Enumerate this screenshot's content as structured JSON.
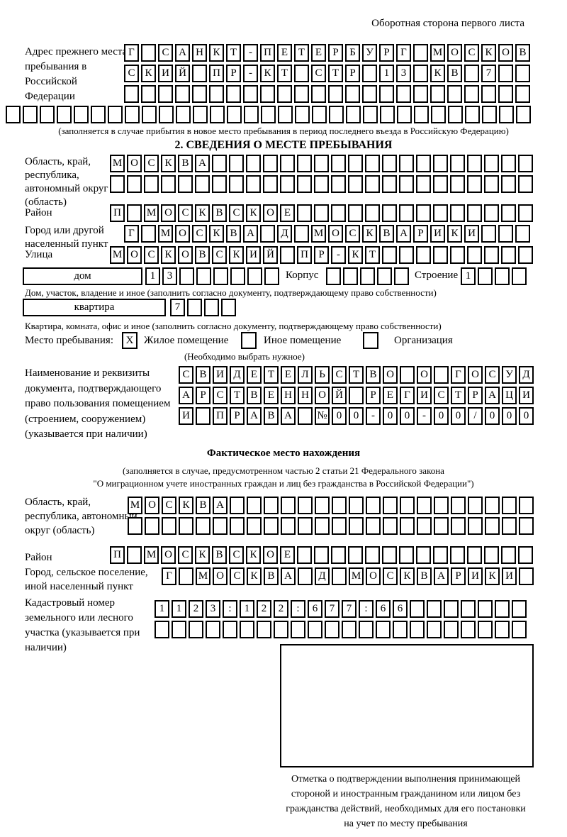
{
  "header": {
    "note": "Оборотная сторона первого листа"
  },
  "prev_address": {
    "label": "Адрес прежнего места пребывания в Российской Федерации",
    "row1": {
      "text": "Г САНКТ-ПЕТЕРБУРГ МОСКОВ",
      "len": 24
    },
    "row2": {
      "text": "СКИЙ ПР-КТ СТР 13 КВ 7",
      "len": 24
    },
    "row3": {
      "text": "",
      "len": 24
    },
    "row4": {
      "text": "",
      "len": 31
    },
    "note": "(заполняется в случае прибытия в новое место пребывания в период последнего въезда в Российскую Федерацию)"
  },
  "section2": {
    "heading": "2. СВЕДЕНИЯ О МЕСТЕ ПРЕБЫВАНИЯ",
    "region": {
      "label": "Область, край, республика, автономный округ (область)",
      "row1": {
        "text": "МОСКВА",
        "len": 25
      },
      "row2": {
        "text": "",
        "len": 25
      }
    },
    "district": {
      "label": "Район",
      "row": {
        "text": "П МОСКВСКОЕ",
        "len": 25
      }
    },
    "city": {
      "label": "Город или другой населенный пункт",
      "row": {
        "text": "Г МОСКВА Д МОСКВАРИКИ",
        "len": 24
      }
    },
    "street": {
      "label": "Улица",
      "row": {
        "text": "МОСКОВСКИЙ ПР-КТ",
        "len": 25
      }
    },
    "house": {
      "box_label": "дом",
      "cells": {
        "text": "13",
        "len": 8
      },
      "korpus_label": "Корпус",
      "korpus_cells": {
        "text": "",
        "len": 5
      },
      "stroenie_label": "Строение",
      "stroenie_cells": {
        "text": "1",
        "len": 4
      },
      "caption": "Дом, участок, владение и иное (заполнить согласно документу, подтверждающему право собственности)"
    },
    "apartment": {
      "box_label": "квартира",
      "cells": {
        "text": "7",
        "len": 4
      },
      "caption": "Квартира, комната, офис и иное (заполнить согласно документу, подтверждающему право собственности)"
    },
    "residence": {
      "label": "Место пребывания:",
      "options": [
        {
          "label": "Жилое помещение",
          "mark": "X"
        },
        {
          "label": "Иное помещение",
          "mark": ""
        },
        {
          "label": "Организация",
          "mark": ""
        }
      ],
      "note": "(Необходимо выбрать нужное)"
    },
    "document": {
      "label": "Наименование и реквизиты документа, подтверждающего право пользования помещением (строением, сооружением) (указывается при наличии)",
      "row1": {
        "text": "СВИДЕТЕЛЬСТВО О ГОСУД",
        "len": 21
      },
      "row2": {
        "text": "АРСТВЕННОЙ РЕГИСТРАЦИ",
        "len": 21
      },
      "row3": {
        "text": "И ПРАВА №00-00-00/000",
        "len": 21
      }
    }
  },
  "actual_location": {
    "heading": "Фактическое место нахождения",
    "note_line1": "(заполняется в случае, предусмотренном частью 2 статьи 21 Федерального закона",
    "note_line2": "\"О миграционном учете иностранных граждан и лиц без гражданства в Российской Федерации\")",
    "region": {
      "label": "Область, край, республика, автономный округ (область)",
      "row1": {
        "text": "МОСКВА",
        "len": 24
      },
      "row2": {
        "text": "",
        "len": 24
      }
    },
    "district": {
      "label": "Район",
      "row": {
        "text": "П МОСКВСКОЕ",
        "len": 25
      }
    },
    "city": {
      "label": "Город, сельское поселение, иной населенный пункт",
      "row": {
        "text": "Г МОСКВА Д МОСКВАРИКИ",
        "len": 22
      }
    },
    "cadastre": {
      "label": "Кадастровый номер земельного или лесного участка (указывается при наличии)",
      "row1": {
        "text": "1123:122:677:66",
        "len": 22
      },
      "row2": {
        "text": "",
        "len": 22
      }
    },
    "stamp": {
      "caption_line1": "Отметка о подтверждении выполнения принимающей",
      "caption_line2": "стороной и иностранным гражданином или лицом без",
      "caption_line3": "гражданства действий, необходимых для его постановки",
      "caption_line4": "на учет по месту пребывания"
    }
  }
}
